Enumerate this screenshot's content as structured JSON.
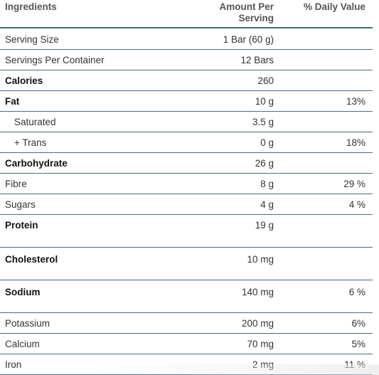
{
  "header": {
    "ingredients": "Ingredients",
    "amount_line1": "Amount Per",
    "amount_line2": "Serving",
    "daily_value": "% Daily Value"
  },
  "rows": [
    {
      "name": "Serving Size",
      "amount": "1 Bar (60 g)",
      "dv": "",
      "bold": false,
      "indent": false
    },
    {
      "name": "Servings Per Container",
      "amount": "12 Bars",
      "dv": "",
      "bold": false,
      "indent": false
    },
    {
      "name": "Calories",
      "amount": "260",
      "dv": "",
      "bold": true,
      "indent": false
    },
    {
      "name": "Fat",
      "amount": "10 g",
      "dv": "13%",
      "bold": true,
      "indent": false
    },
    {
      "name": "Saturated",
      "amount": "3.5 g",
      "dv": "",
      "bold": false,
      "indent": true
    },
    {
      "name": "+ Trans",
      "amount": "0 g",
      "dv": "18%",
      "bold": false,
      "indent": true
    },
    {
      "name": "Carbohydrate",
      "amount": "26 g",
      "dv": "",
      "bold": true,
      "indent": false
    },
    {
      "name": "Fibre",
      "amount": "8 g",
      "dv": "29 %",
      "bold": false,
      "indent": false
    },
    {
      "name": "Sugars",
      "amount": "4 g",
      "dv": "4 %",
      "bold": false,
      "indent": false
    },
    {
      "name": "Protein",
      "amount": "19 g",
      "dv": "",
      "bold": true,
      "indent": false
    },
    {
      "name": "Cholesterol",
      "amount": "10 mg",
      "dv": "",
      "bold": true,
      "indent": false
    },
    {
      "name": "Sodium",
      "amount": "140 mg",
      "dv": "6 %",
      "bold": true,
      "indent": false
    },
    {
      "name": "Potassium",
      "amount": "200 mg",
      "dv": "6%",
      "bold": false,
      "indent": false
    },
    {
      "name": "Calcium",
      "amount": "70 mg",
      "dv": "5%",
      "bold": false,
      "indent": false
    },
    {
      "name": "Iron",
      "amount": "2 mg",
      "dv": "11 %",
      "bold": false,
      "indent": false
    }
  ],
  "colors": {
    "rule": "#4a6b87",
    "text": "#333333",
    "header_text": "#555555"
  }
}
